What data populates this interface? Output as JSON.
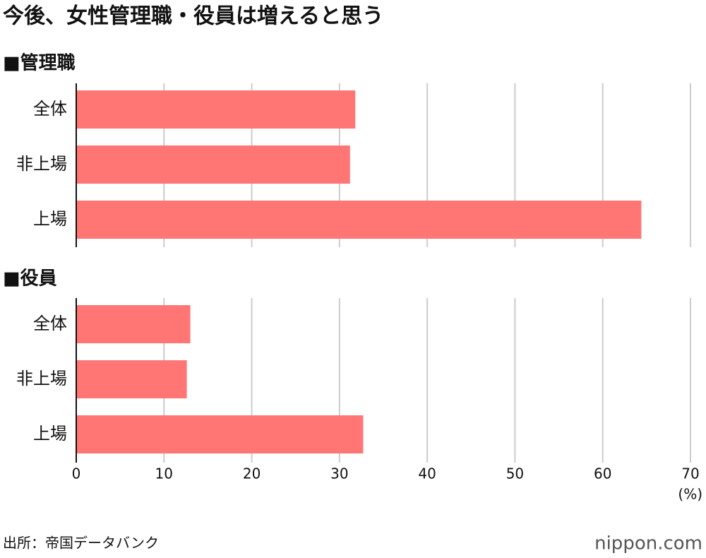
{
  "chart_data": [
    {
      "type": "barh",
      "title": "今後、女性管理職・役員は増えると思う",
      "subtitle": "■管理職",
      "categories": [
        "全体",
        "非上場",
        "上場"
      ],
      "values": [
        31.8,
        31.2,
        64.4
      ],
      "color": "#ff7675",
      "xlim": [
        0,
        70
      ],
      "xticks": [
        0,
        10,
        20,
        30,
        40,
        50,
        60,
        70
      ],
      "grid": true
    },
    {
      "type": "barh",
      "subtitle": "■役員",
      "categories": [
        "全体",
        "非上場",
        "上場"
      ],
      "values": [
        13.0,
        12.6,
        32.7
      ],
      "color": "#ff7675",
      "xlim": [
        0,
        70
      ],
      "xticks": [
        0,
        10,
        20,
        30,
        40,
        50,
        60,
        70
      ],
      "grid": true,
      "x_label": "(%)"
    }
  ],
  "source": "出所：帝国データバンク",
  "logo": "nippon.com"
}
